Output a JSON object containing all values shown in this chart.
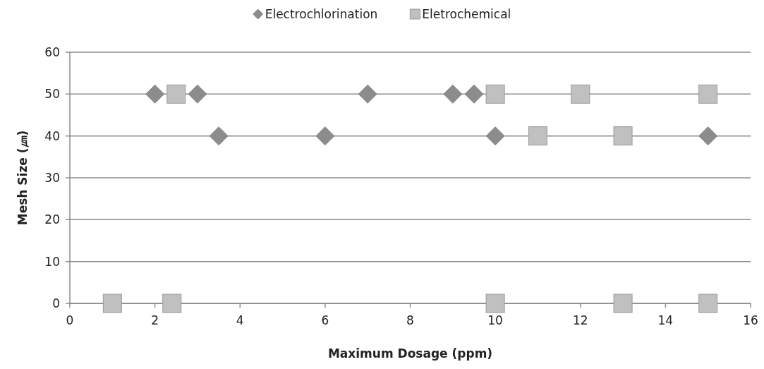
{
  "chart_data": {
    "type": "scatter",
    "xlabel": "Maximum Dosage (ppm)",
    "ylabel": "Mesh Size (㎛)",
    "xlim": [
      0,
      16
    ],
    "ylim": [
      0,
      60
    ],
    "xticks": [
      0,
      2,
      4,
      6,
      8,
      10,
      12,
      14,
      16
    ],
    "yticks": [
      0,
      10,
      20,
      30,
      40,
      50,
      60
    ],
    "grid": "y",
    "legend": "top",
    "series": [
      {
        "name": "Electrochlorination",
        "color": "#8c8c8c",
        "marker": "diamond",
        "x": [
          2,
          3,
          7,
          9,
          9.5,
          3.5,
          6,
          10,
          15
        ],
        "values": [
          50,
          50,
          50,
          50,
          50,
          40,
          40,
          40,
          40
        ]
      },
      {
        "name": "Eletrochemical",
        "color": "#c0c0c0",
        "marker": "square",
        "x": [
          2.5,
          10,
          12,
          15,
          11,
          13,
          1,
          2.4,
          10,
          13,
          15
        ],
        "values": [
          50,
          50,
          50,
          50,
          40,
          40,
          0,
          0,
          0,
          0,
          0
        ]
      }
    ]
  }
}
